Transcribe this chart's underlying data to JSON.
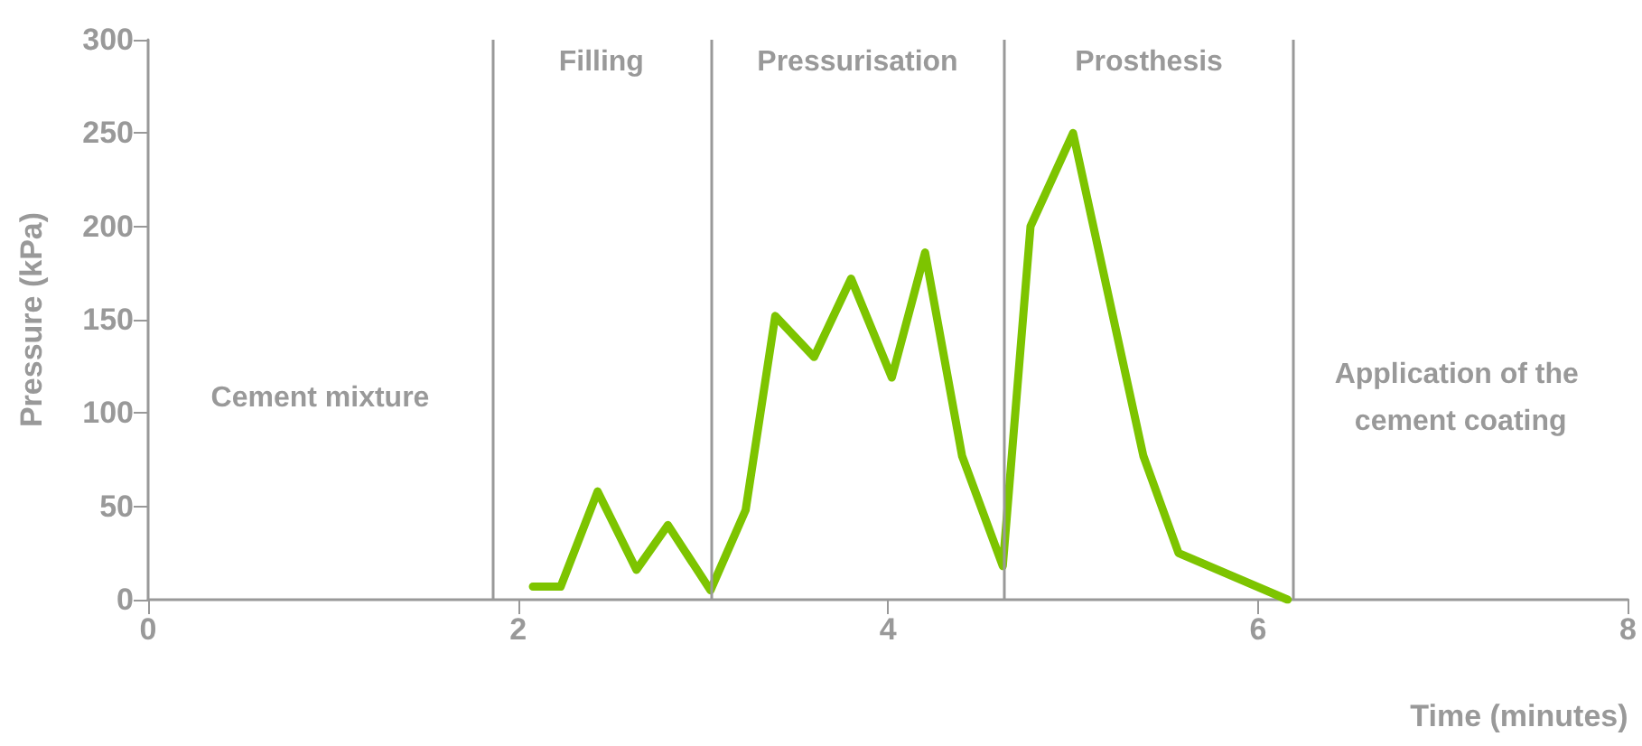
{
  "chart_data": {
    "type": "line",
    "xlabel": "Time (minutes)",
    "ylabel": "Pressure (kPa)",
    "x": [
      2.08,
      2.23,
      2.43,
      2.64,
      2.81,
      3.04,
      3.23,
      3.39,
      3.6,
      3.8,
      4.02,
      4.2,
      4.4,
      4.62,
      4.77,
      5.0,
      5.38,
      5.57,
      6.16
    ],
    "series": [
      {
        "color": "#7dc400",
        "values": [
          7,
          7,
          58,
          16,
          40,
          5,
          48,
          152,
          130,
          172,
          119,
          186,
          77,
          18,
          200,
          250,
          77,
          25,
          0
        ]
      }
    ],
    "xlim": [
      0,
      8
    ],
    "xticks": [
      0,
      2,
      4,
      6,
      8
    ],
    "ylim": [
      0,
      300
    ],
    "yticks": [
      0,
      50,
      100,
      150,
      200,
      250,
      300
    ],
    "grid": false,
    "marker": "none",
    "line_style": "solid",
    "ref_lines": [
      {
        "axis": "x",
        "value": 1.86,
        "color": "#999999"
      },
      {
        "axis": "x",
        "value": 3.04,
        "color": "#999999"
      },
      {
        "axis": "x",
        "value": 4.63,
        "color": "#999999"
      },
      {
        "axis": "x",
        "value": 6.19,
        "color": "#999999"
      }
    ],
    "annotations": [
      "Cement mixture",
      "Filling",
      "Pressurisation",
      "Prosthesis",
      "Application of the cement coating"
    ]
  }
}
